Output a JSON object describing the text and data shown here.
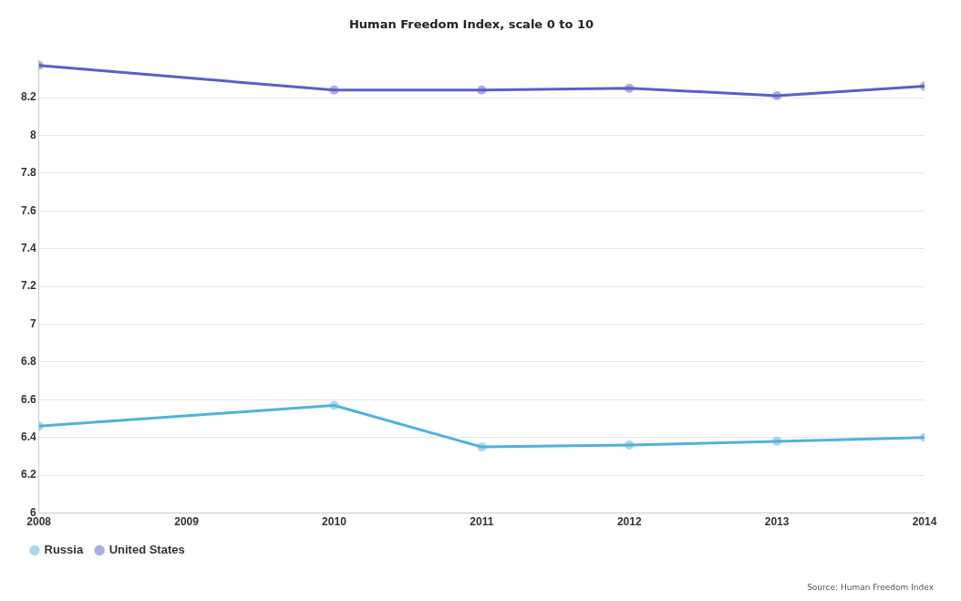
{
  "chart_data": {
    "type": "line",
    "title": "Human Freedom Index, scale 0 to 10",
    "x": [
      2008,
      2010,
      2011,
      2012,
      2013,
      2014
    ],
    "xlim": [
      2008,
      2014
    ],
    "xticks": [
      2008,
      2009,
      2010,
      2011,
      2012,
      2013,
      2014
    ],
    "ylim": [
      6,
      8.4
    ],
    "yticks": [
      6,
      6.2,
      6.4,
      6.6,
      6.8,
      7,
      7.2,
      7.4,
      7.6,
      7.8,
      8,
      8.2
    ],
    "series": [
      {
        "name": "Russia",
        "color": "#4fb3d9",
        "values": [
          6.46,
          6.57,
          6.35,
          6.36,
          6.38,
          6.4
        ]
      },
      {
        "name": "United States",
        "color": "#5a5fc8",
        "values": [
          8.37,
          8.24,
          8.24,
          8.25,
          8.21,
          8.26
        ]
      }
    ],
    "grid": "y",
    "legend": "bottom left",
    "marker": "circle",
    "line_style": "solid",
    "annotations": [
      "Source: Human Freedom Index"
    ]
  }
}
